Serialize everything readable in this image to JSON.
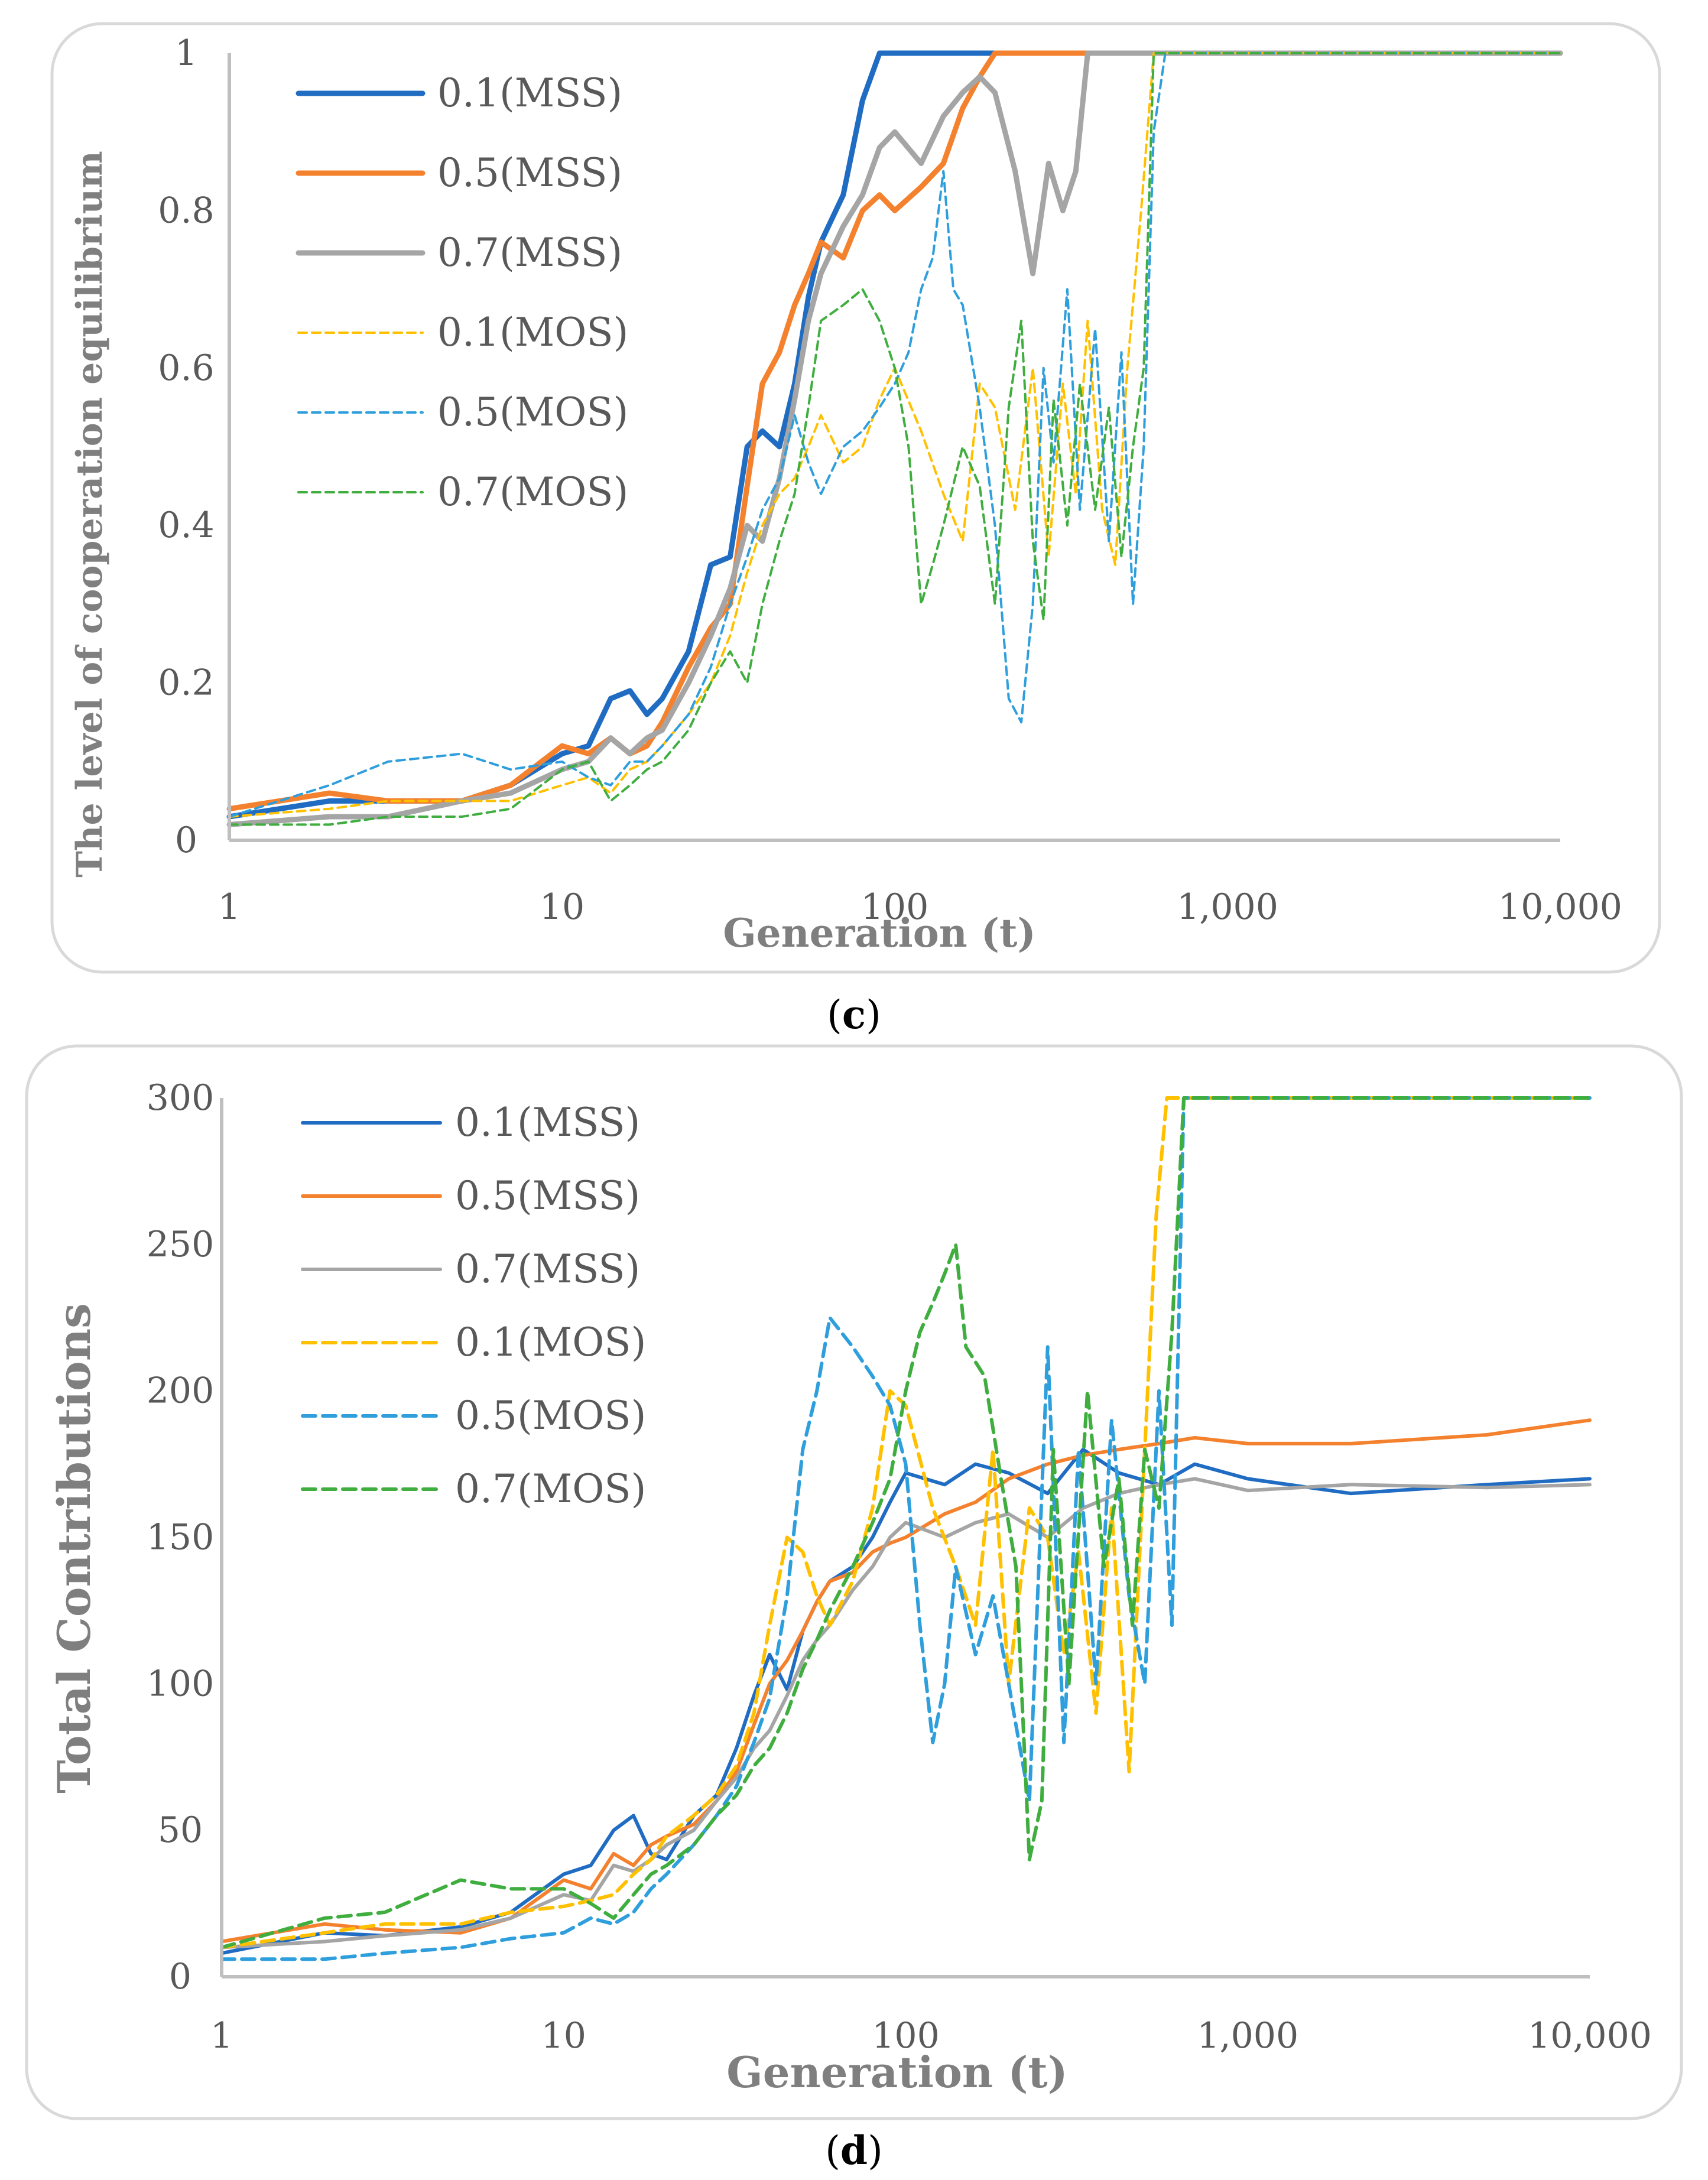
{
  "figure": {
    "captions": [
      {
        "open": "(",
        "letter": "c",
        "close": ")"
      },
      {
        "open": "(",
        "letter": "d",
        "close": ")"
      }
    ]
  },
  "series_styles": [
    {
      "name": "0.1(MSS)",
      "color": "#1f6cc2",
      "dash": "solid"
    },
    {
      "name": "0.5(MSS)",
      "color": "#f4812e",
      "dash": "solid"
    },
    {
      "name": "0.7(MSS)",
      "color": "#a5a5a5",
      "dash": "solid"
    },
    {
      "name": "0.1(MOS)",
      "color": "#ffc000",
      "dash": "dashed"
    },
    {
      "name": "0.5(MOS)",
      "color": "#2e9fdc",
      "dash": "dashed"
    },
    {
      "name": "0.7(MOS)",
      "color": "#3fae3f",
      "dash": "dashed"
    }
  ],
  "chart_data": [
    {
      "id": "c",
      "type": "line",
      "title": "",
      "xlabel": "Generation (t)",
      "ylabel": "The level of cooperation equilibrium",
      "xscale": "log",
      "xlim": [
        1,
        10000
      ],
      "ylim": [
        0,
        1
      ],
      "x_ticks": [
        "1",
        "10",
        "100",
        "1,000",
        "10,000"
      ],
      "y_ticks": [
        "0",
        "0.2",
        "0.4",
        "0.6",
        "0.8",
        "1"
      ],
      "legend": {
        "placement": "top-left",
        "entries": [
          "0.1(MSS)",
          "0.5(MSS)",
          "0.7(MSS)",
          "0.1(MOS)",
          "0.5(MOS)",
          "0.7(MOS)"
        ]
      },
      "series": [
        {
          "name": "0.1(MSS)",
          "x": [
            1,
            2,
            3,
            5,
            7,
            10,
            12,
            14,
            16,
            18,
            20,
            24,
            28,
            32,
            36,
            40,
            45,
            50,
            55,
            60,
            70,
            80,
            90,
            100,
            10000
          ],
          "values": [
            0.03,
            0.05,
            0.05,
            0.05,
            0.07,
            0.11,
            0.12,
            0.18,
            0.19,
            0.16,
            0.18,
            0.24,
            0.35,
            0.36,
            0.5,
            0.52,
            0.5,
            0.58,
            0.69,
            0.76,
            0.82,
            0.94,
            1.0,
            1.0,
            1.0
          ]
        },
        {
          "name": "0.5(MSS)",
          "x": [
            1,
            2,
            3,
            5,
            7,
            10,
            12,
            14,
            16,
            18,
            20,
            24,
            28,
            32,
            36,
            40,
            45,
            50,
            55,
            60,
            70,
            80,
            90,
            100,
            120,
            140,
            160,
            180,
            200,
            10000
          ],
          "values": [
            0.04,
            0.06,
            0.05,
            0.05,
            0.07,
            0.12,
            0.11,
            0.13,
            0.11,
            0.12,
            0.15,
            0.22,
            0.27,
            0.3,
            0.45,
            0.58,
            0.62,
            0.68,
            0.72,
            0.76,
            0.74,
            0.8,
            0.82,
            0.8,
            0.83,
            0.86,
            0.93,
            0.97,
            1.0,
            1.0
          ]
        },
        {
          "name": "0.7(MSS)",
          "x": [
            1,
            2,
            3,
            5,
            7,
            10,
            12,
            14,
            16,
            18,
            20,
            24,
            28,
            32,
            36,
            40,
            45,
            50,
            55,
            60,
            70,
            80,
            90,
            100,
            120,
            140,
            160,
            180,
            200,
            230,
            260,
            290,
            320,
            350,
            380,
            10000
          ],
          "values": [
            0.02,
            0.03,
            0.03,
            0.05,
            0.06,
            0.09,
            0.1,
            0.13,
            0.11,
            0.13,
            0.14,
            0.2,
            0.26,
            0.32,
            0.4,
            0.38,
            0.46,
            0.56,
            0.66,
            0.72,
            0.78,
            0.82,
            0.88,
            0.9,
            0.86,
            0.92,
            0.95,
            0.97,
            0.95,
            0.85,
            0.72,
            0.86,
            0.8,
            0.85,
            1.0,
            1.0
          ]
        },
        {
          "name": "0.1(MOS)",
          "x": [
            1,
            2,
            3,
            5,
            7,
            10,
            12,
            14,
            16,
            18,
            20,
            24,
            28,
            32,
            36,
            40,
            45,
            50,
            55,
            60,
            70,
            80,
            90,
            100,
            120,
            140,
            160,
            180,
            200,
            230,
            260,
            290,
            320,
            350,
            380,
            420,
            460,
            500,
            550,
            600,
            650,
            10000
          ],
          "values": [
            0.03,
            0.04,
            0.05,
            0.05,
            0.05,
            0.07,
            0.08,
            0.06,
            0.09,
            0.1,
            0.12,
            0.16,
            0.2,
            0.26,
            0.34,
            0.4,
            0.44,
            0.46,
            0.5,
            0.54,
            0.48,
            0.5,
            0.56,
            0.6,
            0.52,
            0.44,
            0.38,
            0.58,
            0.55,
            0.42,
            0.6,
            0.36,
            0.58,
            0.44,
            0.66,
            0.42,
            0.35,
            0.6,
            0.8,
            1.0,
            1.0,
            1.0
          ]
        },
        {
          "name": "0.5(MOS)",
          "x": [
            1,
            2,
            3,
            5,
            7,
            10,
            12,
            14,
            16,
            18,
            20,
            24,
            28,
            32,
            36,
            40,
            45,
            50,
            55,
            60,
            70,
            80,
            90,
            100,
            110,
            120,
            130,
            140,
            150,
            160,
            180,
            200,
            220,
            240,
            260,
            280,
            300,
            330,
            360,
            400,
            440,
            480,
            520,
            560,
            600,
            650,
            10000
          ],
          "values": [
            0.03,
            0.07,
            0.1,
            0.11,
            0.09,
            0.1,
            0.08,
            0.07,
            0.1,
            0.1,
            0.12,
            0.16,
            0.22,
            0.3,
            0.36,
            0.42,
            0.46,
            0.54,
            0.48,
            0.44,
            0.5,
            0.52,
            0.55,
            0.58,
            0.62,
            0.7,
            0.74,
            0.85,
            0.7,
            0.68,
            0.55,
            0.4,
            0.18,
            0.15,
            0.3,
            0.6,
            0.48,
            0.7,
            0.42,
            0.65,
            0.38,
            0.62,
            0.3,
            0.5,
            0.9,
            1.0,
            1.0
          ]
        },
        {
          "name": "0.7(MOS)",
          "x": [
            1,
            2,
            3,
            5,
            7,
            10,
            12,
            14,
            16,
            18,
            20,
            24,
            28,
            32,
            36,
            40,
            45,
            50,
            55,
            60,
            70,
            80,
            90,
            100,
            110,
            120,
            130,
            140,
            160,
            180,
            200,
            220,
            240,
            260,
            280,
            300,
            330,
            360,
            400,
            440,
            480,
            520,
            560,
            600,
            650,
            10000
          ],
          "values": [
            0.02,
            0.02,
            0.03,
            0.03,
            0.04,
            0.09,
            0.1,
            0.05,
            0.07,
            0.09,
            0.1,
            0.14,
            0.2,
            0.24,
            0.2,
            0.3,
            0.38,
            0.44,
            0.55,
            0.66,
            0.68,
            0.7,
            0.66,
            0.6,
            0.5,
            0.3,
            0.35,
            0.4,
            0.5,
            0.45,
            0.3,
            0.55,
            0.66,
            0.38,
            0.28,
            0.56,
            0.4,
            0.58,
            0.42,
            0.55,
            0.36,
            0.5,
            0.6,
            1.0,
            1.0,
            1.0
          ]
        }
      ]
    },
    {
      "id": "d",
      "type": "line",
      "title": "",
      "xlabel": "Generation (t)",
      "ylabel": "Total Contributions",
      "xscale": "log",
      "xlim": [
        1,
        10000
      ],
      "ylim": [
        0,
        300
      ],
      "x_ticks": [
        "1",
        "10",
        "100",
        "1,000",
        "10,000"
      ],
      "y_ticks": [
        "0",
        "50",
        "100",
        "150",
        "200",
        "250",
        "300"
      ],
      "legend": {
        "placement": "top-left",
        "entries": [
          "0.1(MSS)",
          "0.5(MSS)",
          "0.7(MSS)",
          "0.1(MOS)",
          "0.5(MOS)",
          "0.7(MOS)"
        ]
      },
      "series": [
        {
          "name": "0.1(MSS)",
          "x": [
            1,
            2,
            3,
            5,
            7,
            10,
            12,
            14,
            16,
            18,
            20,
            24,
            28,
            32,
            36,
            40,
            45,
            50,
            55,
            60,
            70,
            80,
            90,
            100,
            130,
            160,
            200,
            260,
            330,
            420,
            550,
            700,
            1000,
            2000,
            5000,
            10000
          ],
          "values": [
            8,
            15,
            14,
            17,
            22,
            35,
            38,
            50,
            55,
            42,
            40,
            55,
            62,
            78,
            96,
            110,
            98,
            118,
            128,
            135,
            140,
            150,
            162,
            172,
            168,
            175,
            172,
            165,
            180,
            172,
            168,
            175,
            170,
            165,
            168,
            170
          ]
        },
        {
          "name": "0.5(MSS)",
          "x": [
            1,
            2,
            3,
            5,
            7,
            10,
            12,
            14,
            16,
            18,
            20,
            24,
            28,
            32,
            36,
            40,
            45,
            50,
            55,
            60,
            70,
            80,
            90,
            100,
            130,
            160,
            200,
            260,
            330,
            420,
            550,
            700,
            1000,
            2000,
            5000,
            10000
          ],
          "values": [
            12,
            18,
            16,
            15,
            20,
            33,
            30,
            42,
            38,
            45,
            48,
            52,
            60,
            70,
            86,
            100,
            108,
            118,
            128,
            135,
            138,
            145,
            148,
            150,
            158,
            162,
            170,
            175,
            178,
            180,
            182,
            184,
            182,
            182,
            185,
            190
          ]
        },
        {
          "name": "0.7(MSS)",
          "x": [
            1,
            2,
            3,
            5,
            7,
            10,
            12,
            14,
            16,
            18,
            20,
            24,
            28,
            32,
            36,
            40,
            45,
            50,
            55,
            60,
            70,
            80,
            90,
            100,
            130,
            160,
            200,
            260,
            330,
            420,
            550,
            700,
            1000,
            2000,
            5000,
            10000
          ],
          "values": [
            10,
            12,
            14,
            16,
            20,
            28,
            26,
            38,
            36,
            40,
            45,
            50,
            60,
            68,
            78,
            84,
            96,
            108,
            115,
            120,
            132,
            140,
            150,
            155,
            150,
            155,
            158,
            150,
            160,
            165,
            168,
            170,
            166,
            168,
            167,
            168
          ]
        },
        {
          "name": "0.1(MOS)",
          "x": [
            1,
            2,
            3,
            5,
            7,
            10,
            12,
            14,
            16,
            18,
            20,
            24,
            28,
            32,
            36,
            40,
            45,
            50,
            55,
            60,
            70,
            80,
            90,
            100,
            120,
            140,
            160,
            180,
            200,
            230,
            260,
            290,
            320,
            360,
            400,
            450,
            500,
            540,
            580,
            620,
            10000
          ],
          "values": [
            10,
            15,
            18,
            18,
            22,
            24,
            26,
            28,
            35,
            40,
            48,
            55,
            62,
            72,
            90,
            120,
            150,
            145,
            130,
            120,
            135,
            160,
            200,
            195,
            160,
            140,
            120,
            180,
            100,
            160,
            150,
            110,
            145,
            90,
            160,
            70,
            180,
            260,
            300,
            300,
            300
          ]
        },
        {
          "name": "0.5(MOS)",
          "x": [
            1,
            2,
            3,
            5,
            7,
            10,
            12,
            14,
            16,
            18,
            20,
            24,
            28,
            32,
            36,
            40,
            45,
            50,
            55,
            60,
            70,
            80,
            90,
            100,
            110,
            120,
            130,
            140,
            160,
            180,
            200,
            230,
            260,
            290,
            320,
            360,
            400,
            450,
            500,
            550,
            600,
            650,
            10000
          ],
          "values": [
            6,
            6,
            8,
            10,
            13,
            15,
            20,
            18,
            22,
            30,
            35,
            45,
            55,
            65,
            80,
            95,
            130,
            180,
            200,
            225,
            215,
            205,
            195,
            175,
            120,
            80,
            100,
            140,
            110,
            130,
            100,
            60,
            215,
            80,
            180,
            100,
            190,
            130,
            100,
            200,
            120,
            300,
            300
          ]
        },
        {
          "name": "0.7(MOS)",
          "x": [
            1,
            2,
            3,
            5,
            7,
            10,
            12,
            14,
            16,
            18,
            20,
            24,
            28,
            32,
            36,
            40,
            45,
            50,
            55,
            60,
            70,
            80,
            90,
            100,
            110,
            120,
            130,
            140,
            150,
            170,
            190,
            210,
            230,
            250,
            270,
            300,
            340,
            380,
            420,
            460,
            500,
            550,
            600,
            650,
            10000
          ],
          "values": [
            10,
            20,
            22,
            33,
            30,
            30,
            25,
            20,
            28,
            35,
            38,
            45,
            55,
            62,
            72,
            78,
            90,
            105,
            115,
            125,
            140,
            155,
            170,
            200,
            220,
            230,
            240,
            250,
            215,
            205,
            170,
            140,
            40,
            60,
            180,
            100,
            200,
            140,
            170,
            120,
            180,
            160,
            220,
            300,
            300
          ]
        }
      ]
    }
  ]
}
